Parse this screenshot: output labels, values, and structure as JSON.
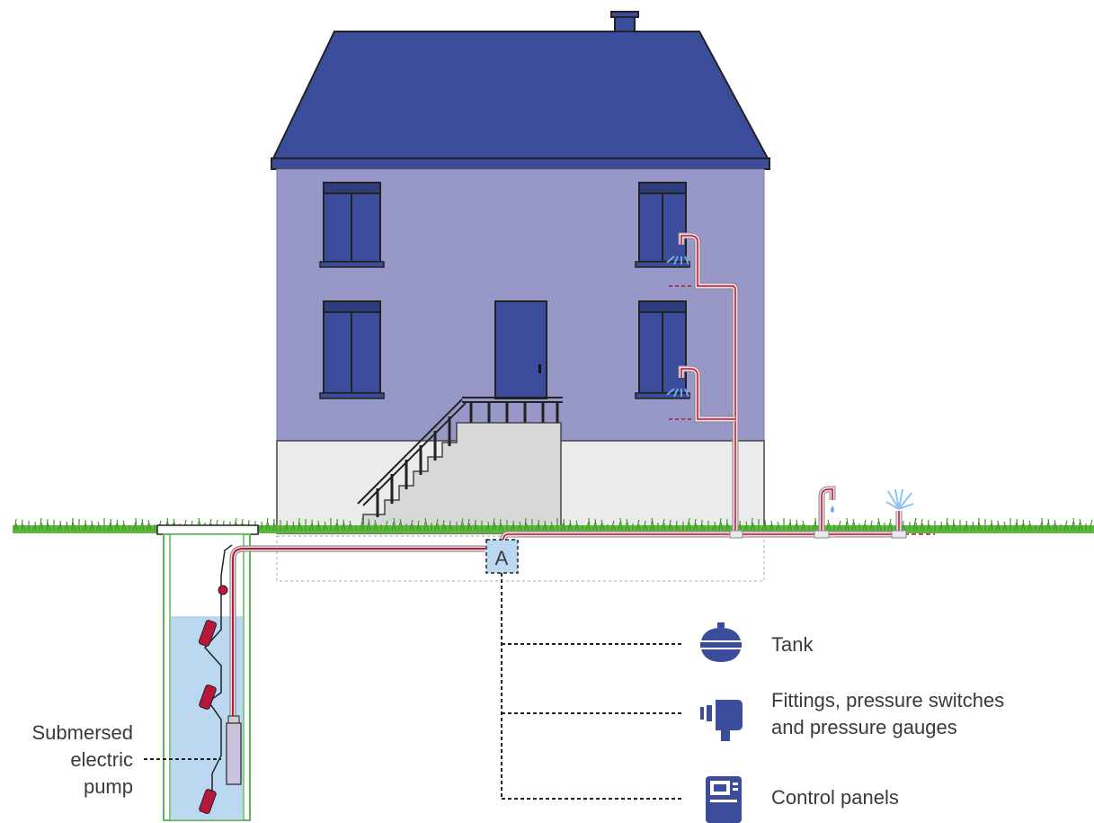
{
  "junction_marker": "A",
  "pump_label": {
    "line1": "Submersed",
    "line2": "electric",
    "line3": "pump"
  },
  "components": [
    {
      "icon": "tank-icon",
      "label_line1": "Tank",
      "label_line2": ""
    },
    {
      "icon": "fitting-icon",
      "label_line1": "Fittings, pressure switches",
      "label_line2": "and pressure gauges"
    },
    {
      "icon": "control-panel-icon",
      "label_line1": "Control panels",
      "label_line2": ""
    }
  ],
  "colors": {
    "roof": "#3b4d9a",
    "wall": "#9898c8",
    "window": "#3b4d9a",
    "basement": "#ebebeb",
    "stairs": "#d8d8d8",
    "grass": "#5cb83c",
    "pipe": "#b5183a",
    "well_water": "#bcd8f0",
    "well_wall": "#5cb85c",
    "icon": "#3b4d9a"
  }
}
